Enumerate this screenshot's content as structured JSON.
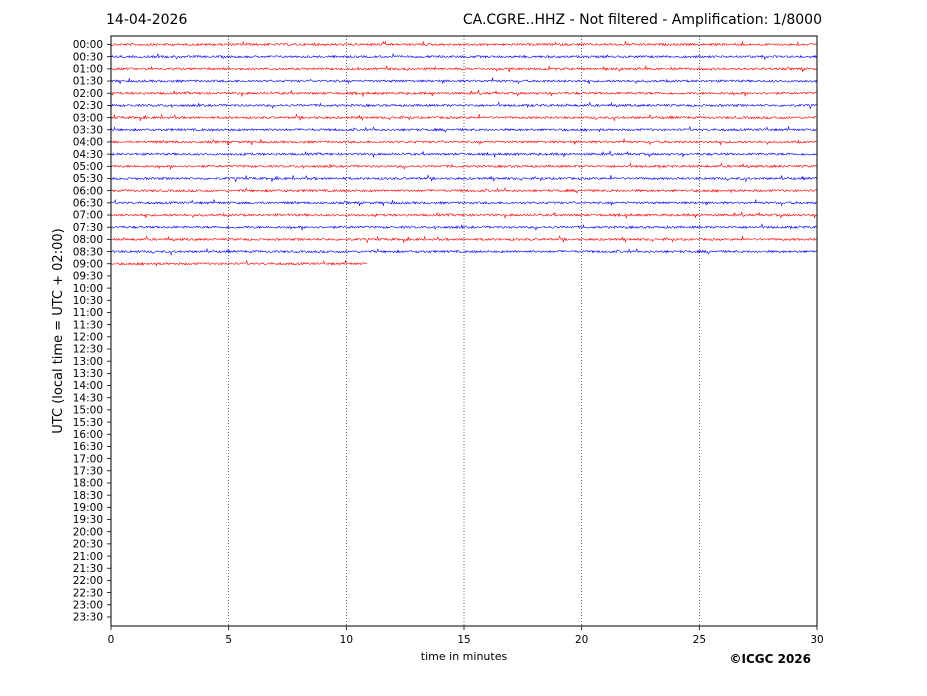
{
  "header": {
    "date": "14-04-2026",
    "title": "CA.CGRE..HHZ - Not filtered - Amplification: 1/8000"
  },
  "copyright": "©ICGC 2026",
  "colors": {
    "odd_trace": "#ff0000",
    "even_trace": "#0000ff",
    "grid": "#000000"
  },
  "chart_data": {
    "type": "line",
    "title": "CA.CGRE..HHZ - Not filtered - Amplification: 1/8000",
    "xlabel": "time in minutes",
    "ylabel": "UTC (local time = UTC + 02:00)",
    "xlim": [
      0,
      30
    ],
    "x_ticks": [
      "0",
      "5",
      "10",
      "15",
      "20",
      "25",
      "30"
    ],
    "grid": "vertical dotted at x ticks",
    "y_tick_labels": [
      "00:00",
      "00:30",
      "01:00",
      "01:30",
      "02:00",
      "02:30",
      "03:00",
      "03:30",
      "04:00",
      "04:30",
      "05:00",
      "05:30",
      "06:00",
      "06:30",
      "07:00",
      "07:30",
      "08:00",
      "08:30",
      "09:00",
      "09:30",
      "10:00",
      "10:30",
      "11:00",
      "11:30",
      "12:00",
      "12:30",
      "13:00",
      "13:30",
      "14:00",
      "14:30",
      "15:00",
      "15:30",
      "16:00",
      "16:30",
      "17:00",
      "17:30",
      "18:00",
      "18:30",
      "19:00",
      "19:30",
      "20:00",
      "20:30",
      "21:00",
      "21:30",
      "22:00",
      "22:30",
      "23:00",
      "23:30"
    ],
    "series": [
      {
        "row": "00:00",
        "end_minute": 30,
        "color": "red"
      },
      {
        "row": "00:30",
        "end_minute": 30,
        "color": "blue"
      },
      {
        "row": "01:00",
        "end_minute": 30,
        "color": "red"
      },
      {
        "row": "01:30",
        "end_minute": 30,
        "color": "blue"
      },
      {
        "row": "02:00",
        "end_minute": 30,
        "color": "red"
      },
      {
        "row": "02:30",
        "end_minute": 30,
        "color": "blue"
      },
      {
        "row": "03:00",
        "end_minute": 30,
        "color": "red"
      },
      {
        "row": "03:30",
        "end_minute": 30,
        "color": "blue"
      },
      {
        "row": "04:00",
        "end_minute": 30,
        "color": "red"
      },
      {
        "row": "04:30",
        "end_minute": 30,
        "color": "blue"
      },
      {
        "row": "05:00",
        "end_minute": 30,
        "color": "red"
      },
      {
        "row": "05:30",
        "end_minute": 30,
        "color": "blue"
      },
      {
        "row": "06:00",
        "end_minute": 30,
        "color": "red"
      },
      {
        "row": "06:30",
        "end_minute": 30,
        "color": "blue"
      },
      {
        "row": "07:00",
        "end_minute": 30,
        "color": "red"
      },
      {
        "row": "07:30",
        "end_minute": 30,
        "color": "blue"
      },
      {
        "row": "08:00",
        "end_minute": 30,
        "color": "red"
      },
      {
        "row": "08:30",
        "end_minute": 30,
        "color": "blue"
      },
      {
        "row": "09:00",
        "end_minute": 10.9,
        "color": "red"
      }
    ]
  }
}
